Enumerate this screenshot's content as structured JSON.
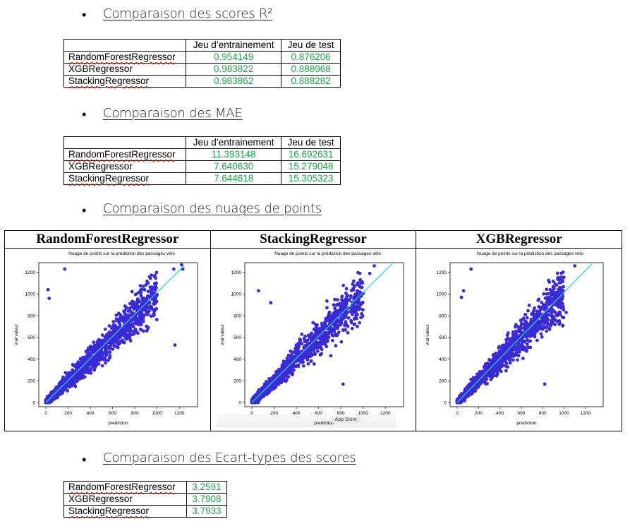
{
  "sections": {
    "r2": {
      "heading": "Comparaison des scores R²",
      "headers": [
        "",
        "Jeu d’entrainement",
        "Jeu de test"
      ],
      "rows": [
        {
          "model": "RandomForestRegressor",
          "train": "0.954149",
          "test": "0.876206"
        },
        {
          "model": "XGBRegressor",
          "train": "0.983822",
          "test": "0.888968"
        },
        {
          "model": "StackingRegressor",
          "train": "0.983862",
          "test": "0.888282"
        }
      ]
    },
    "mae": {
      "heading": "Comparaison des MAE",
      "headers": [
        "",
        "Jeu d’entrainement",
        "Jeu de test"
      ],
      "rows": [
        {
          "model": "RandomForestRegressor",
          "train": "11.393148",
          "test": "16.692631"
        },
        {
          "model": "XGBRegressor",
          "train": "7.640630",
          "test": "15.279048"
        },
        {
          "model": "StackingRegressor",
          "train": "7.644618",
          "test": "15.305323"
        }
      ]
    },
    "scatter": {
      "heading": "Comparaison des nuages de points"
    },
    "std": {
      "heading": "Comparaison des Ecart-types des scores",
      "rows": [
        {
          "model": "RandomForestRegressor",
          "value": "3.2591"
        },
        {
          "model": "XGBRegressor",
          "value": "3.7908"
        },
        {
          "model": "StackingRegressor",
          "value": "3.7933"
        }
      ]
    }
  },
  "bullet": "•",
  "colors": {
    "points": "#3b2bd6",
    "line": "#27d3e6",
    "numbers": "#20a34a"
  },
  "chart_data": [
    {
      "type": "scatter",
      "title": "Nuage de points sur la prédiction des passages vélo",
      "panel_label": "RandomForestRegressor",
      "xlabel": "prediction",
      "ylabel": "vrai valeur",
      "xlim": [
        0,
        1300
      ],
      "ylim": [
        0,
        1250
      ],
      "xticks": [
        0,
        200,
        400,
        600,
        800,
        1000,
        1200
      ],
      "yticks": [
        0,
        200,
        400,
        600,
        800,
        1000,
        1200
      ],
      "reference_line": {
        "from": [
          0,
          0
        ],
        "to": [
          1240,
          1260
        ]
      },
      "outliers": [
        [
          170,
          1230
        ],
        [
          20,
          1040
        ],
        [
          30,
          960
        ],
        [
          1160,
          530
        ],
        [
          1220,
          1270
        ],
        [
          1150,
          1230
        ],
        [
          1230,
          1230
        ]
      ]
    },
    {
      "type": "scatter",
      "title": "Nuage de points sur la prédiction des passages vélo",
      "panel_label": "StackingRegressor",
      "xlabel": "prediction",
      "ylabel": "vrai valeur",
      "xlim": [
        0,
        1300
      ],
      "ylim": [
        0,
        1250
      ],
      "xticks": [
        0,
        200,
        400,
        600,
        800,
        1000,
        1200
      ],
      "yticks": [
        0,
        200,
        400,
        600,
        800,
        1000,
        1200
      ],
      "reference_line": {
        "from": [
          0,
          0
        ],
        "to": [
          1260,
          1280
        ]
      },
      "outliers": [
        [
          60,
          1030
        ],
        [
          170,
          920
        ],
        [
          1100,
          1260
        ],
        [
          1060,
          1190
        ],
        [
          950,
          1030
        ],
        [
          820,
          170
        ]
      ],
      "overlay_button": "App Store"
    },
    {
      "type": "scatter",
      "title": "Nuage de points sur la prédiction des passages vélo",
      "panel_label": "XGBRegressor",
      "xlabel": "prediction",
      "ylabel": "vrai valeur",
      "xlim": [
        0,
        1300
      ],
      "ylim": [
        0,
        1250
      ],
      "xticks": [
        0,
        200,
        400,
        600,
        800,
        1000,
        1200
      ],
      "yticks": [
        0,
        200,
        400,
        600,
        800,
        1000,
        1200
      ],
      "reference_line": {
        "from": [
          0,
          0
        ],
        "to": [
          1260,
          1280
        ]
      },
      "outliers": [
        [
          130,
          1230
        ],
        [
          60,
          1030
        ],
        [
          40,
          970
        ],
        [
          1100,
          1260
        ],
        [
          1020,
          830
        ],
        [
          820,
          170
        ]
      ]
    }
  ]
}
